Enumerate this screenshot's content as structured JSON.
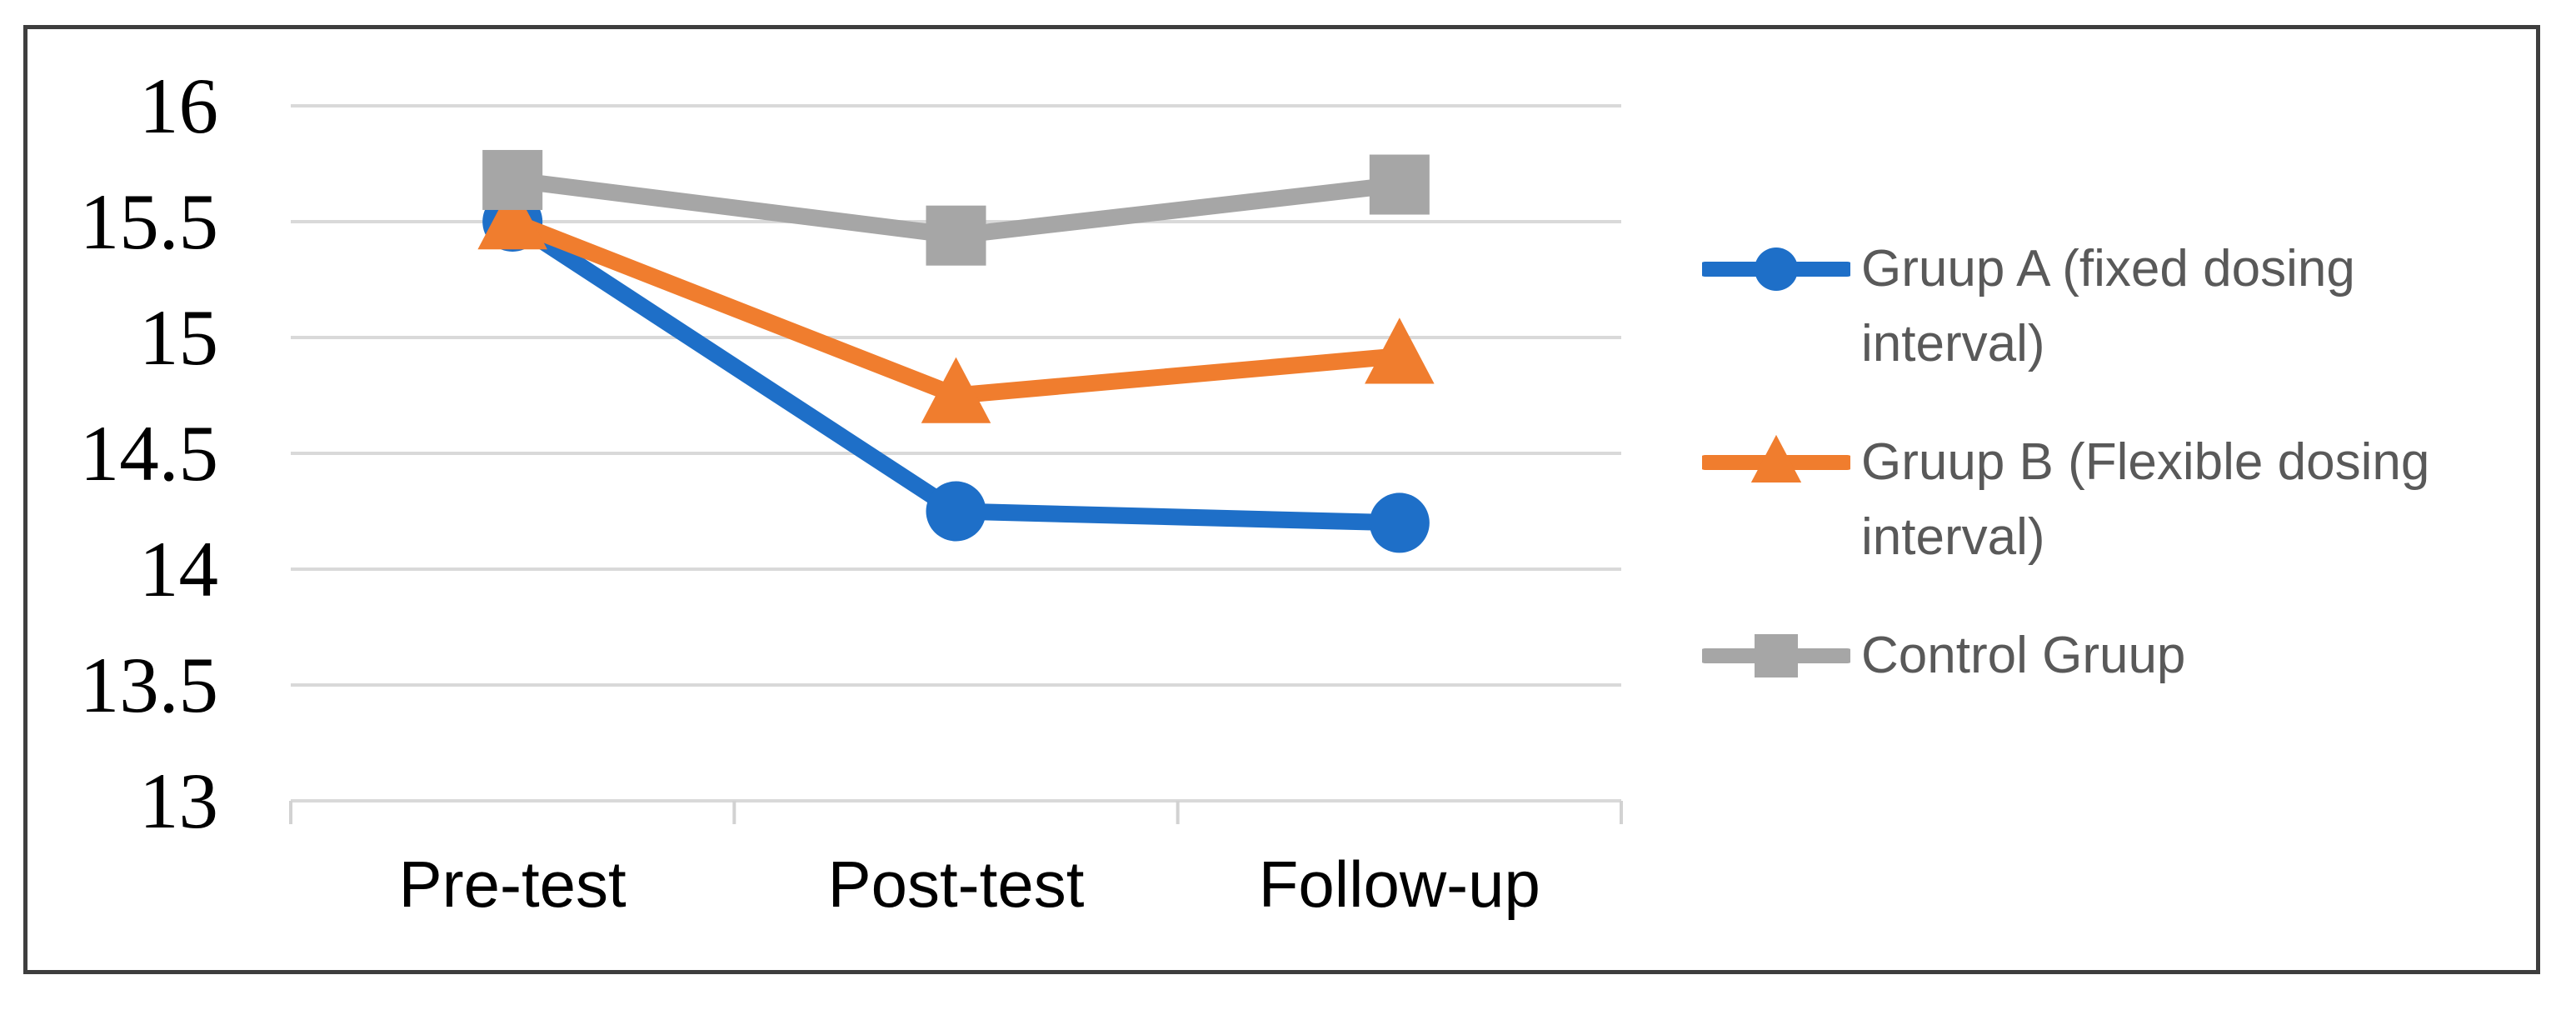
{
  "figure": {
    "border_color": "#3E3E3E",
    "background_color": "#FFFFFF"
  },
  "chart_data": {
    "type": "line",
    "title": "",
    "xlabel": "",
    "ylabel": "",
    "categories": [
      "Pre-test",
      "Post-test",
      "Follow-up"
    ],
    "series": [
      {
        "name": "Gruup A (fixed dosing interval)",
        "color": "#1E6FC8",
        "marker": "circle",
        "values": [
          15.5,
          14.25,
          14.2
        ]
      },
      {
        "name": "Gruup B (Flexible dosing interval)",
        "color": "#F07D2E",
        "marker": "triangle",
        "values": [
          15.5,
          14.75,
          14.92
        ]
      },
      {
        "name": "Control Gruup",
        "color": "#A6A6A6",
        "marker": "square",
        "values": [
          15.68,
          15.44,
          15.66
        ]
      }
    ],
    "ylim": [
      13,
      16
    ],
    "ytick_step": 0.5,
    "yticks": [
      "16",
      "15.5",
      "15",
      "14.5",
      "14",
      "13.5",
      "13"
    ],
    "grid": true,
    "gridline_color": "#D9D9D9",
    "axis_color": "#D2D2D2",
    "tick_label_color": "#000000",
    "legend_position": "right",
    "legend_text_color": "#595959"
  }
}
